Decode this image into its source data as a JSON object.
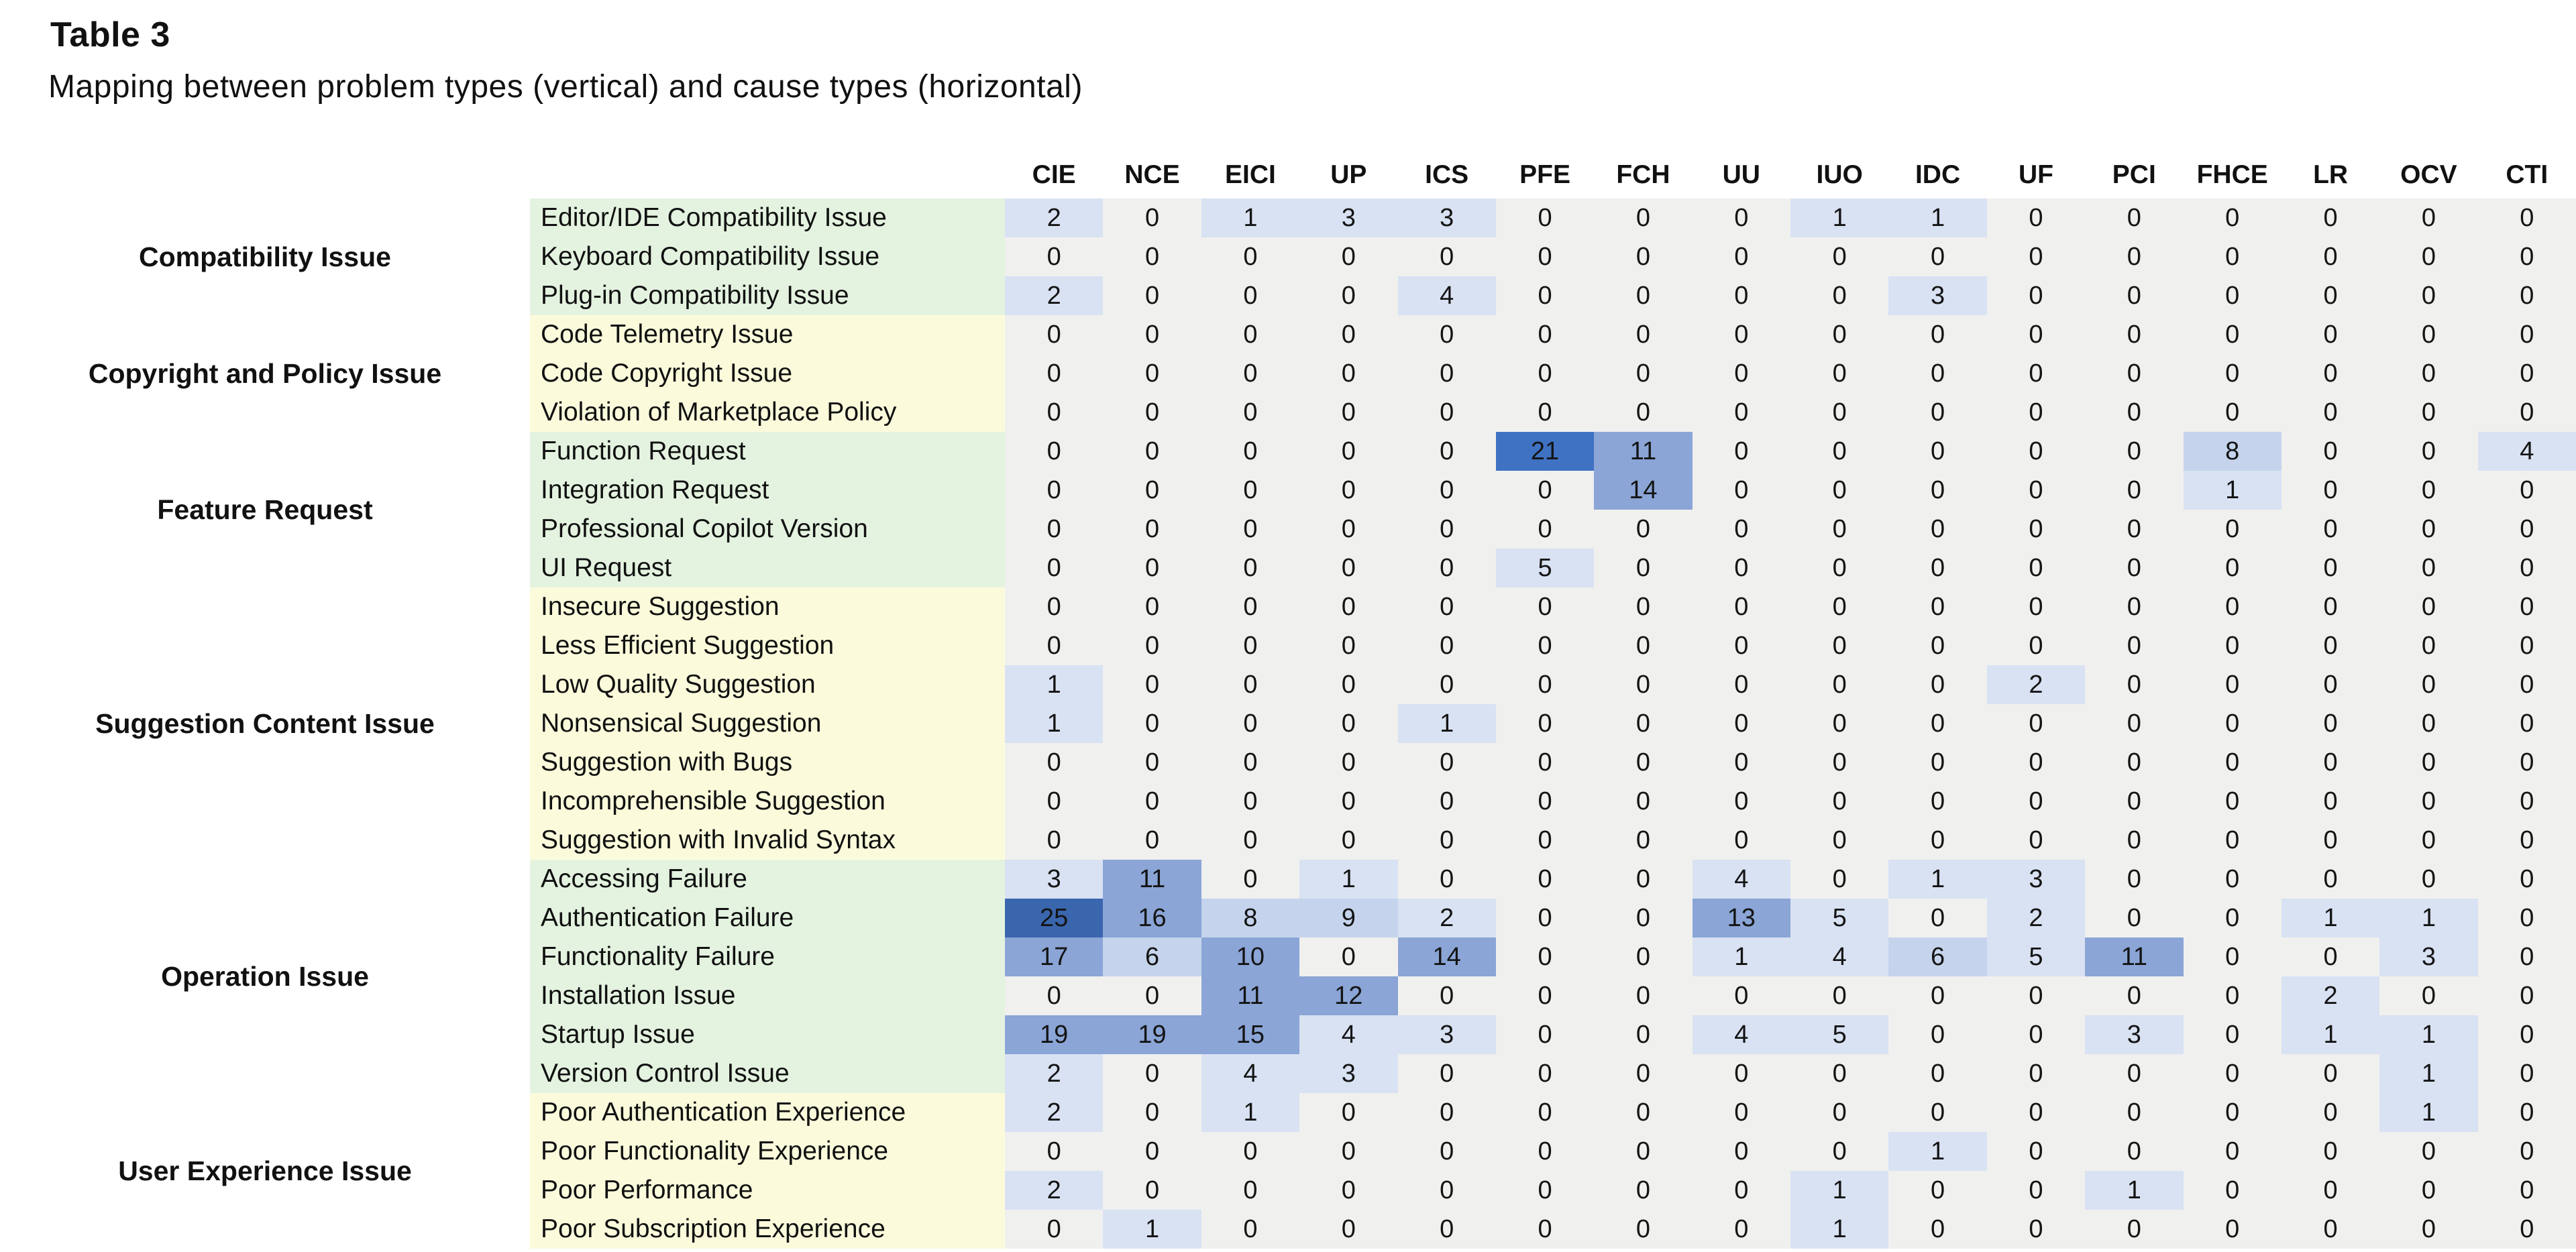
{
  "title": "Table 3",
  "subtitle": "Mapping between problem types (vertical) and cause types (horizontal)",
  "colors": {
    "page_bg": "#ffffff",
    "tint_green": "#e4f3e0",
    "tint_yellow": "#fbfbdc",
    "cell_zero_bg": "#f0f0ee",
    "heat_bins": [
      {
        "min": 1,
        "color": "#d9e2f3"
      },
      {
        "min": 6,
        "color": "#c5d4ec"
      },
      {
        "min": 10,
        "color": "#8aa5d6"
      },
      {
        "min": 20,
        "color": "#3f72c3"
      },
      {
        "min": 23,
        "color": "#3a66ae"
      }
    ]
  },
  "chart_data": {
    "type": "heatmap",
    "title": "Table 3",
    "subtitle": "Mapping between problem types (vertical) and cause types (horizontal)",
    "legend_position": "none",
    "columns": [
      "CIE",
      "NCE",
      "EICI",
      "UP",
      "ICS",
      "PFE",
      "FCH",
      "UU",
      "IUO",
      "IDC",
      "UF",
      "PCI",
      "FHCE",
      "LR",
      "OCV",
      "CTI"
    ],
    "groups": [
      {
        "label": "Compatibility Issue",
        "tint": "green",
        "rows": [
          {
            "label": "Editor/IDE Compatibility Issue",
            "values": [
              2,
              0,
              1,
              3,
              3,
              0,
              0,
              0,
              1,
              1,
              0,
              0,
              0,
              0,
              0,
              0
            ]
          },
          {
            "label": "Keyboard Compatibility Issue",
            "values": [
              0,
              0,
              0,
              0,
              0,
              0,
              0,
              0,
              0,
              0,
              0,
              0,
              0,
              0,
              0,
              0
            ]
          },
          {
            "label": "Plug-in Compatibility Issue",
            "values": [
              2,
              0,
              0,
              0,
              4,
              0,
              0,
              0,
              0,
              3,
              0,
              0,
              0,
              0,
              0,
              0
            ]
          }
        ]
      },
      {
        "label": "Copyright and Policy Issue",
        "tint": "yellow",
        "rows": [
          {
            "label": "Code Telemetry Issue",
            "values": [
              0,
              0,
              0,
              0,
              0,
              0,
              0,
              0,
              0,
              0,
              0,
              0,
              0,
              0,
              0,
              0
            ]
          },
          {
            "label": "Code Copyright Issue",
            "values": [
              0,
              0,
              0,
              0,
              0,
              0,
              0,
              0,
              0,
              0,
              0,
              0,
              0,
              0,
              0,
              0
            ]
          },
          {
            "label": "Violation of Marketplace Policy",
            "values": [
              0,
              0,
              0,
              0,
              0,
              0,
              0,
              0,
              0,
              0,
              0,
              0,
              0,
              0,
              0,
              0
            ]
          }
        ]
      },
      {
        "label": "Feature Request",
        "tint": "green",
        "rows": [
          {
            "label": "Function Request",
            "values": [
              0,
              0,
              0,
              0,
              0,
              21,
              11,
              0,
              0,
              0,
              0,
              0,
              8,
              0,
              0,
              4
            ]
          },
          {
            "label": "Integration Request",
            "values": [
              0,
              0,
              0,
              0,
              0,
              0,
              14,
              0,
              0,
              0,
              0,
              0,
              1,
              0,
              0,
              0
            ]
          },
          {
            "label": "Professional Copilot Version",
            "values": [
              0,
              0,
              0,
              0,
              0,
              0,
              0,
              0,
              0,
              0,
              0,
              0,
              0,
              0,
              0,
              0
            ]
          },
          {
            "label": "UI Request",
            "values": [
              0,
              0,
              0,
              0,
              0,
              5,
              0,
              0,
              0,
              0,
              0,
              0,
              0,
              0,
              0,
              0
            ]
          }
        ]
      },
      {
        "label": "Suggestion Content Issue",
        "tint": "yellow",
        "rows": [
          {
            "label": "Insecure Suggestion",
            "values": [
              0,
              0,
              0,
              0,
              0,
              0,
              0,
              0,
              0,
              0,
              0,
              0,
              0,
              0,
              0,
              0
            ]
          },
          {
            "label": "Less Efficient Suggestion",
            "values": [
              0,
              0,
              0,
              0,
              0,
              0,
              0,
              0,
              0,
              0,
              0,
              0,
              0,
              0,
              0,
              0
            ]
          },
          {
            "label": "Low Quality Suggestion",
            "values": [
              1,
              0,
              0,
              0,
              0,
              0,
              0,
              0,
              0,
              0,
              2,
              0,
              0,
              0,
              0,
              0
            ]
          },
          {
            "label": "Nonsensical Suggestion",
            "values": [
              1,
              0,
              0,
              0,
              1,
              0,
              0,
              0,
              0,
              0,
              0,
              0,
              0,
              0,
              0,
              0
            ]
          },
          {
            "label": "Suggestion with Bugs",
            "values": [
              0,
              0,
              0,
              0,
              0,
              0,
              0,
              0,
              0,
              0,
              0,
              0,
              0,
              0,
              0,
              0
            ]
          },
          {
            "label": "Incomprehensible Suggestion",
            "values": [
              0,
              0,
              0,
              0,
              0,
              0,
              0,
              0,
              0,
              0,
              0,
              0,
              0,
              0,
              0,
              0
            ]
          },
          {
            "label": "Suggestion with Invalid Syntax",
            "values": [
              0,
              0,
              0,
              0,
              0,
              0,
              0,
              0,
              0,
              0,
              0,
              0,
              0,
              0,
              0,
              0
            ]
          }
        ]
      },
      {
        "label": "Operation Issue",
        "tint": "green",
        "rows": [
          {
            "label": "Accessing Failure",
            "values": [
              3,
              11,
              0,
              1,
              0,
              0,
              0,
              4,
              0,
              1,
              3,
              0,
              0,
              0,
              0,
              0
            ]
          },
          {
            "label": "Authentication Failure",
            "values": [
              25,
              16,
              8,
              9,
              2,
              0,
              0,
              13,
              5,
              0,
              2,
              0,
              0,
              1,
              1,
              0
            ]
          },
          {
            "label": "Functionality Failure",
            "values": [
              17,
              6,
              10,
              0,
              14,
              0,
              0,
              1,
              4,
              6,
              5,
              11,
              0,
              0,
              3,
              0
            ]
          },
          {
            "label": "Installation Issue",
            "values": [
              0,
              0,
              11,
              12,
              0,
              0,
              0,
              0,
              0,
              0,
              0,
              0,
              0,
              2,
              0,
              0
            ]
          },
          {
            "label": "Startup Issue",
            "values": [
              19,
              19,
              15,
              4,
              3,
              0,
              0,
              4,
              5,
              0,
              0,
              3,
              0,
              1,
              1,
              0
            ]
          },
          {
            "label": "Version Control Issue",
            "values": [
              2,
              0,
              4,
              3,
              0,
              0,
              0,
              0,
              0,
              0,
              0,
              0,
              0,
              0,
              1,
              0
            ]
          }
        ]
      },
      {
        "label": "User Experience Issue",
        "tint": "yellow",
        "rows": [
          {
            "label": "Poor Authentication Experience",
            "values": [
              2,
              0,
              1,
              0,
              0,
              0,
              0,
              0,
              0,
              0,
              0,
              0,
              0,
              0,
              1,
              0
            ]
          },
          {
            "label": "Poor Functionality Experience",
            "values": [
              0,
              0,
              0,
              0,
              0,
              0,
              0,
              0,
              0,
              1,
              0,
              0,
              0,
              0,
              0,
              0
            ]
          },
          {
            "label": "Poor Performance",
            "values": [
              2,
              0,
              0,
              0,
              0,
              0,
              0,
              0,
              1,
              0,
              0,
              1,
              0,
              0,
              0,
              0
            ]
          },
          {
            "label": "Poor Subscription Experience",
            "values": [
              0,
              1,
              0,
              0,
              0,
              0,
              0,
              0,
              1,
              0,
              0,
              0,
              0,
              0,
              0,
              0
            ]
          }
        ]
      }
    ]
  }
}
